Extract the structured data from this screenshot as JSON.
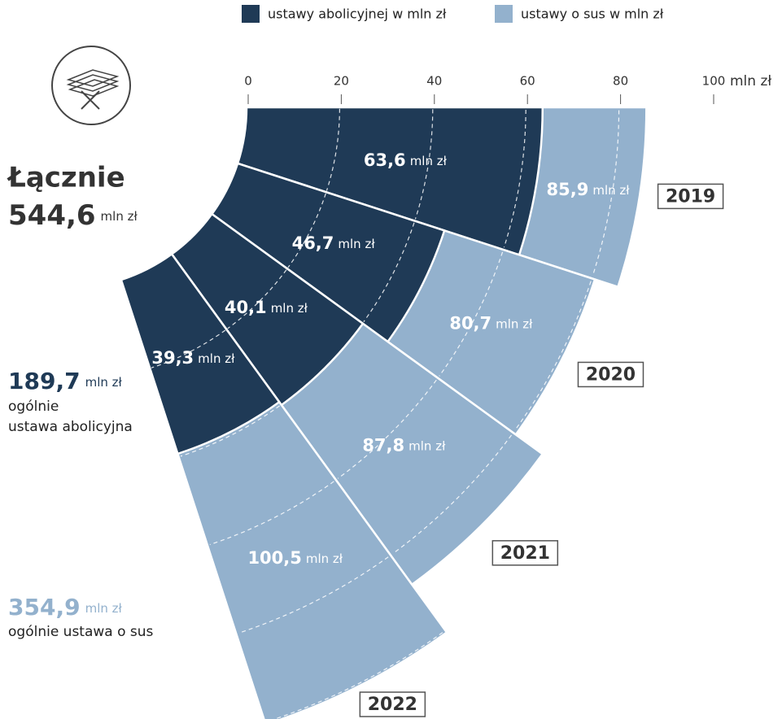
{
  "chart_data": {
    "type": "radial_bar",
    "categories": [
      "2019",
      "2020",
      "2021",
      "2022"
    ],
    "series": [
      {
        "name": "ustawy abolicyjnej w mln zł",
        "color": "#1f3a56",
        "values": [
          63.6,
          46.7,
          40.1,
          39.3
        ],
        "value_labels": [
          "63,6",
          "46,7",
          "40,1",
          "39,3"
        ]
      },
      {
        "name": "ustawy o sus w mln zł",
        "color": "#93b1cd",
        "values": [
          85.9,
          80.7,
          87.8,
          100.5
        ],
        "value_labels": [
          "85,9",
          "80,7",
          "87,8",
          "100,5"
        ]
      }
    ],
    "unit": "mln zł",
    "xlim": [
      0,
      100
    ],
    "xticks": [
      0,
      20,
      40,
      60,
      80,
      100
    ],
    "grid": true
  },
  "summary": {
    "total_label": "Łącznie",
    "total": "544,6",
    "unit": "mln zł",
    "abolition_total": "189,7",
    "abolition_line1": "ogólnie",
    "abolition_line2": "ustawa abolicyjna",
    "sus_total": "354,9",
    "sus_line": "ogólnie ustawa o sus"
  }
}
